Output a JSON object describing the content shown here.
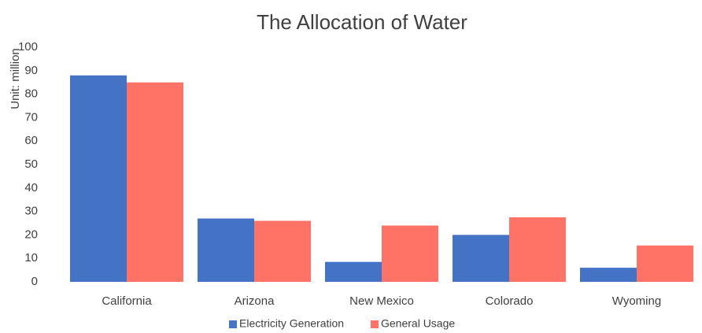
{
  "chart_data": {
    "type": "bar",
    "title": "The Allocation of Water",
    "y_label": "Unit: million",
    "categories": [
      "California",
      "Arizona",
      "New Mexico",
      "Colorado",
      "Wyoming"
    ],
    "series": [
      {
        "name": "Electricity Generation",
        "color": "#4472c4",
        "values": [
          88,
          27,
          8.5,
          20,
          6
        ]
      },
      {
        "name": "General Usage",
        "color": "#ff7366",
        "values": [
          85,
          26,
          24,
          27.5,
          15.5
        ]
      }
    ],
    "ylim": [
      0,
      100
    ],
    "yticks": [
      0,
      10,
      20,
      30,
      40,
      50,
      60,
      70,
      80,
      90,
      100
    ],
    "grid": false,
    "legend": "bottom"
  }
}
